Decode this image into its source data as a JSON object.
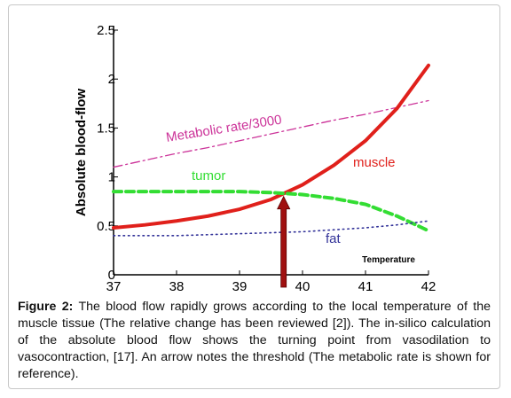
{
  "chart_data": {
    "type": "line",
    "ylabel": "Absolute blood-flow",
    "xlabel": "Temperature",
    "x": [
      37,
      37.5,
      38,
      38.5,
      39,
      39.5,
      40,
      40.5,
      41,
      41.5,
      42
    ],
    "series": [
      {
        "name": "Metabolic rate/3000",
        "color": "#cc3399",
        "style": "dashdot",
        "values": [
          1.1,
          1.17,
          1.24,
          1.3,
          1.37,
          1.44,
          1.51,
          1.58,
          1.64,
          1.71,
          1.78
        ]
      },
      {
        "name": "muscle",
        "color": "#e0201b",
        "style": "solid",
        "values": [
          0.48,
          0.51,
          0.55,
          0.6,
          0.67,
          0.77,
          0.92,
          1.12,
          1.37,
          1.7,
          2.14
        ]
      },
      {
        "name": "tumor",
        "color": "#33dd33",
        "style": "dashed",
        "values": [
          0.85,
          0.85,
          0.85,
          0.85,
          0.85,
          0.84,
          0.82,
          0.78,
          0.72,
          0.6,
          0.45
        ]
      },
      {
        "name": "fat",
        "color": "#333399",
        "style": "dotted",
        "values": [
          0.4,
          0.4,
          0.4,
          0.41,
          0.42,
          0.43,
          0.44,
          0.46,
          0.48,
          0.51,
          0.55
        ]
      }
    ],
    "xlim": [
      37,
      42
    ],
    "xticks": [
      37,
      38,
      39,
      40,
      41,
      42
    ],
    "ylim": [
      0,
      2.5
    ],
    "yticks": [
      0,
      0.5,
      1,
      1.5,
      2,
      2.5
    ],
    "annotations": [
      {
        "type": "arrow",
        "color": "#a01010",
        "x": 39.7,
        "y_start": 0,
        "y_end": 0.8
      }
    ]
  },
  "caption": {
    "label": "Figure 2:",
    "text": "The blood flow rapidly grows according to the local temperature of the muscle tissue (The relative change has been reviewed [2]). The in-silico calculation of the absolute blood flow shows the turning point from vasodilation to vasocontraction, [17]. An arrow notes the threshold (The metabolic rate is shown for reference)."
  }
}
